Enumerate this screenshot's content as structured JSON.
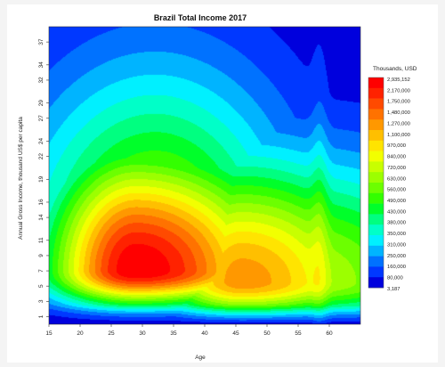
{
  "chart_data": {
    "type": "heatmap",
    "subtype": "filled-contour",
    "title": "Brazil Total Income 2017",
    "xlabel": "Age",
    "ylabel": "Annual Gross Income, thousand US$ per capita",
    "xlim": [
      15,
      65
    ],
    "ylim": [
      0,
      39
    ],
    "x_ticks": [
      15,
      20,
      25,
      30,
      35,
      40,
      45,
      50,
      55,
      60
    ],
    "y_ticks": [
      1,
      3,
      5,
      7,
      9,
      11,
      14,
      16,
      19,
      22,
      24,
      27,
      29,
      32,
      34,
      37
    ],
    "legend_title": "Thousands, USD",
    "legend_labels": [
      "2,935,152",
      "2,170,000",
      "1,750,000",
      "1,480,000",
      "1,270,000",
      "1,100,000",
      "970,000",
      "840,000",
      "720,000",
      "630,000",
      "560,000",
      "490,000",
      "430,000",
      "380,000",
      "350,000",
      "310,000",
      "250,000",
      "160,000",
      "80,000",
      "3,187"
    ],
    "legend_colors": [
      "#ff0000",
      "#ff2200",
      "#ff4a00",
      "#ff7200",
      "#ff9800",
      "#ffbf00",
      "#ffe400",
      "#f2ff00",
      "#c8ff00",
      "#9cff00",
      "#6cff00",
      "#33ff00",
      "#00ff2a",
      "#00ff80",
      "#00ffc8",
      "#00f0ff",
      "#00b4ff",
      "#0072ff",
      "#0038ff",
      "#0000dd"
    ],
    "peaks": [
      {
        "age": 29,
        "income": 7,
        "weight": 1.0
      },
      {
        "age": 46,
        "income": 5.5,
        "weight": 0.78
      },
      {
        "age": 57,
        "income": 5.5,
        "weight": 0.55
      }
    ],
    "grid": false,
    "legend_position": "right"
  }
}
